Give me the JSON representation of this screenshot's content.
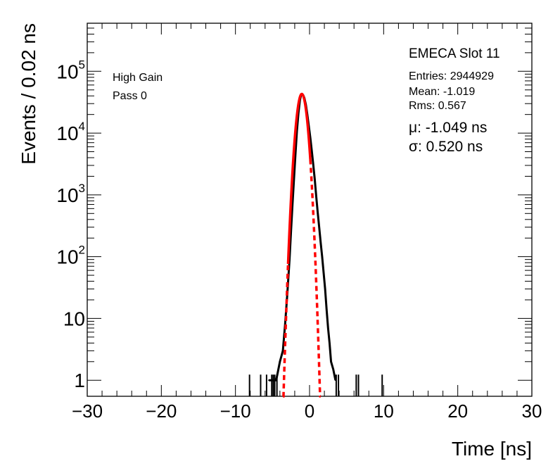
{
  "chart_data": {
    "type": "line",
    "title": "EMECA Slot 11",
    "xlabel": "Time [ns]",
    "ylabel": "Events / 0.02 ns",
    "xlim": [
      -30,
      30
    ],
    "ylim": [
      0.55,
      600000
    ],
    "yscale": "log",
    "grid": false,
    "x_ticks": [
      -30,
      -20,
      -10,
      0,
      10,
      20,
      30
    ],
    "x_tick_labels": [
      "−30",
      "−20",
      "−10",
      "0",
      "10",
      "20",
      "30"
    ],
    "y_ticks": [
      1,
      10,
      100,
      1000,
      10000,
      100000
    ],
    "y_tick_labels": [
      {
        "base": "1",
        "exp": ""
      },
      {
        "base": "10",
        "exp": ""
      },
      {
        "base": "10",
        "exp": "2"
      },
      {
        "base": "10",
        "exp": "3"
      },
      {
        "base": "10",
        "exp": "4"
      },
      {
        "base": "10",
        "exp": "5"
      }
    ],
    "annotations": {
      "gain": "High Gain",
      "pass": "Pass 0",
      "entries": "Entries: 2944929",
      "mean": "Mean: -1.019",
      "rms": "Rms: 0.567",
      "mu": "μ: -1.049 ns",
      "sigma": "σ: 0.520 ns"
    },
    "series": [
      {
        "style": "histogram",
        "color": "#000000",
        "x": [
          -5.5,
          -4.5,
          -4.0,
          -3.6,
          -3.3,
          -3.0,
          -2.7,
          -2.5,
          -2.3,
          -2.1,
          -1.9,
          -1.7,
          -1.5,
          -1.3,
          -1.15,
          -1.0,
          -0.85,
          -0.7,
          -0.5,
          -0.3,
          -0.1,
          0.1,
          0.3,
          0.5,
          0.7,
          0.9,
          1.1,
          1.3,
          1.5,
          1.7,
          1.9,
          2.1,
          2.3,
          2.5,
          2.7,
          2.9,
          3.2,
          3.5
        ],
        "y": [
          1,
          1,
          2,
          3,
          8,
          25,
          90,
          260,
          700,
          1800,
          4600,
          11000,
          21000,
          34000,
          41000,
          43000,
          41000,
          37000,
          29000,
          20000,
          13000,
          8500,
          5200,
          3100,
          1800,
          950,
          520,
          300,
          170,
          100,
          55,
          30,
          14,
          7,
          4,
          2,
          1.5,
          1
        ]
      },
      {
        "style": "gaussian-fit",
        "color": "#ff0000",
        "amplitude": 43000,
        "mu": -1.049,
        "sigma": 0.52,
        "x_range": [
          -3.6,
          1.5
        ],
        "solid_range": [
          -2.9,
          0.1
        ]
      }
    ],
    "sparse_events": [
      -8.1,
      -6.6,
      -5.8,
      -5.1,
      -4.9,
      -4.7,
      -4.4,
      3.6,
      3.9,
      6.3,
      6.6,
      9.8
    ]
  }
}
